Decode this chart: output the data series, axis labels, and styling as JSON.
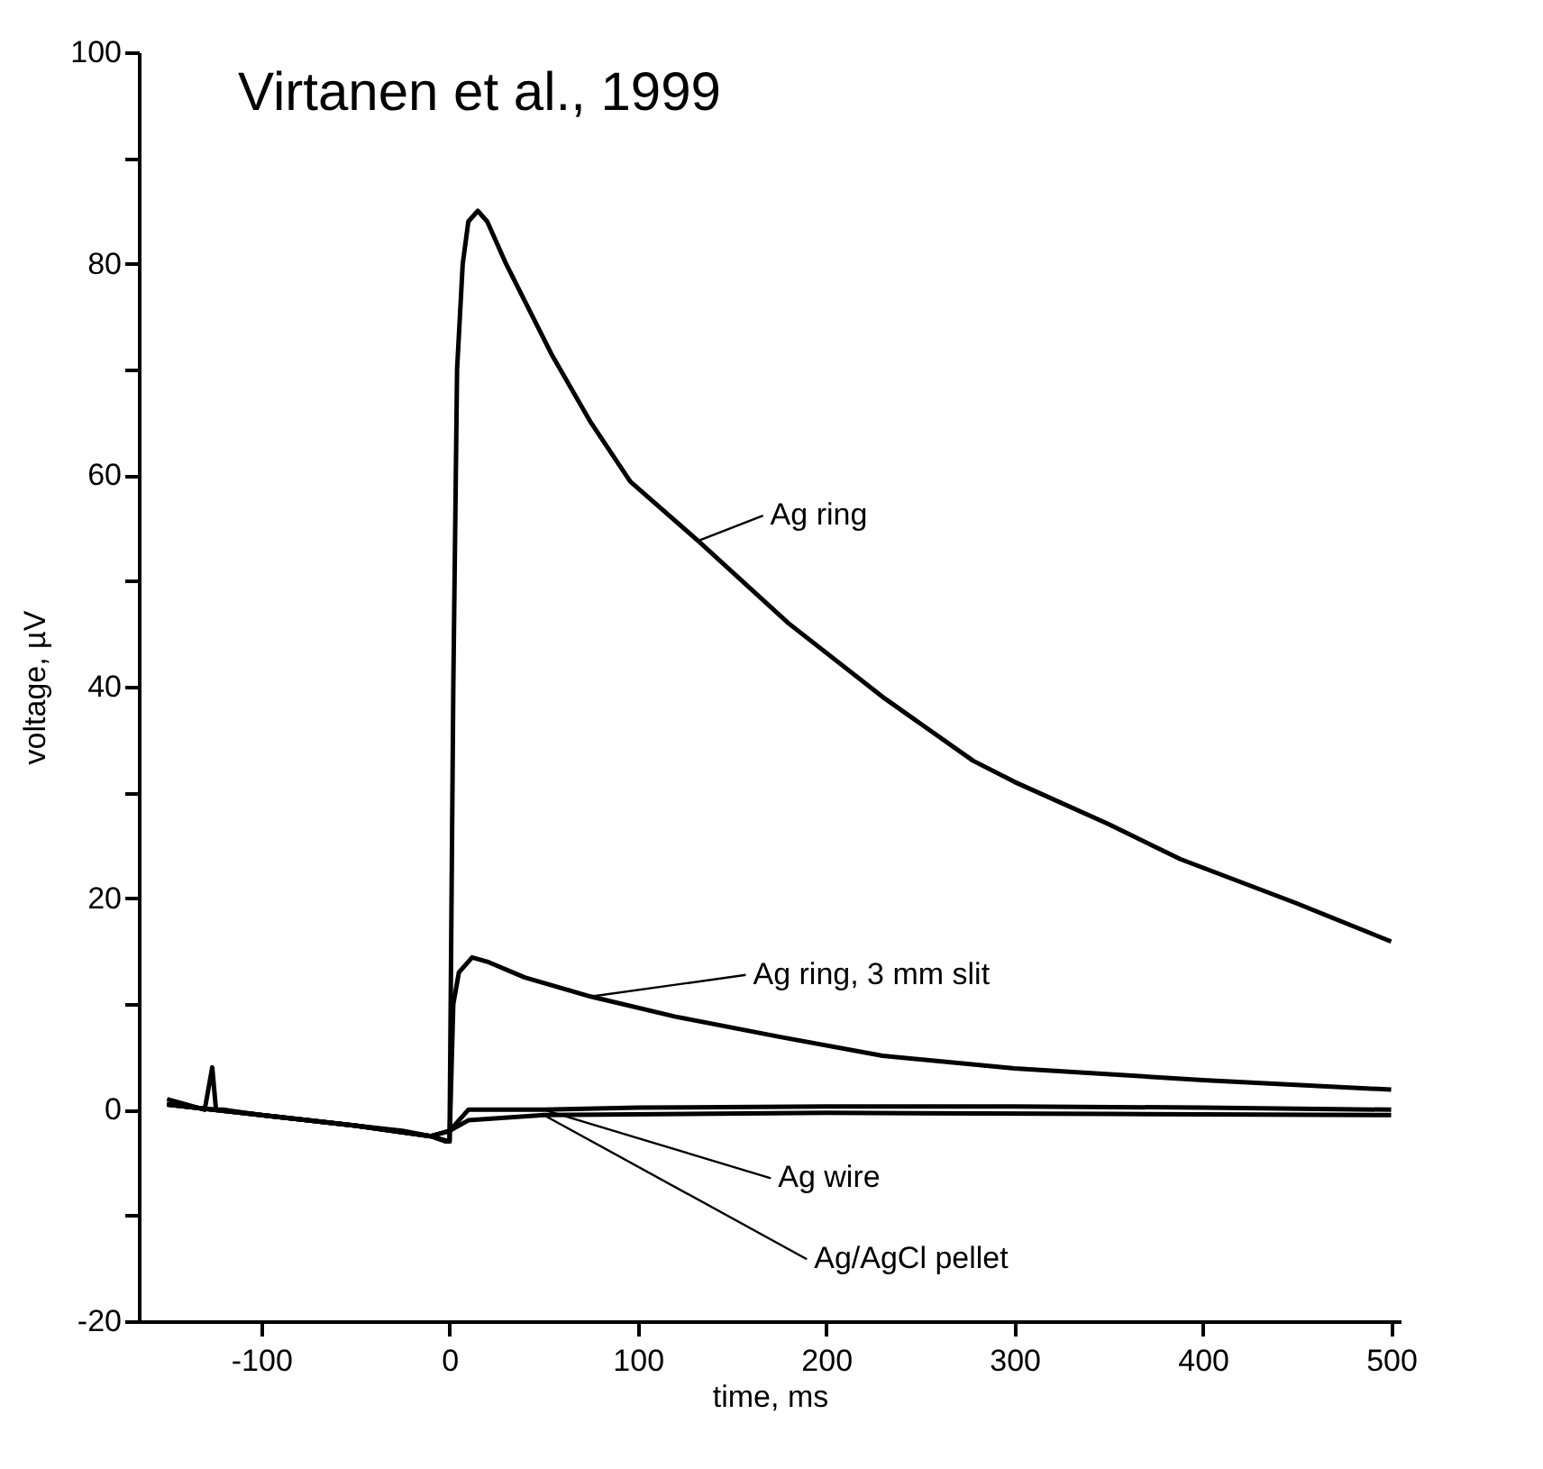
{
  "chart_data": {
    "type": "line",
    "title": "Virtanen  et al., 1999",
    "xlabel": "time, ms",
    "ylabel": "voltage, µV",
    "xlim": [
      -165,
      505
    ],
    "ylim": [
      -20,
      100
    ],
    "xticks": [
      -100,
      0,
      100,
      200,
      300,
      400,
      500
    ],
    "yticks": [
      -20,
      {
        "value": -10,
        "label": null
      },
      0,
      {
        "value": 10,
        "label": null
      },
      20,
      {
        "value": 30,
        "label": null
      },
      40,
      {
        "value": 50,
        "label": null
      },
      60,
      {
        "value": 70,
        "label": null
      },
      80,
      {
        "value": 90,
        "label": null
      },
      100
    ],
    "grid": false,
    "marker": "none",
    "line_style": "solid",
    "series": [
      {
        "name": "Ag ring",
        "color": "#000000",
        "x": [
          -150,
          -140,
          -130,
          -126,
          -124,
          -120,
          -100,
          -75,
          -50,
          -25,
          -10,
          -2,
          0,
          2,
          4,
          7,
          10,
          15,
          20,
          30,
          54,
          75,
          96,
          132,
          180,
          231,
          278,
          300,
          350,
          388,
          450,
          500
        ],
        "values": [
          1,
          0.5,
          0,
          4,
          0,
          0,
          -0.5,
          -1,
          -1.5,
          -2,
          -2.5,
          -3,
          -3,
          40,
          70,
          80,
          84,
          85,
          84,
          80,
          71.5,
          65,
          59.4,
          53.8,
          46,
          38.9,
          33,
          31,
          27,
          23.7,
          19.5,
          15.9
        ]
      },
      {
        "name": "Ag ring, 3 mm slit",
        "color": "#000000",
        "x": [
          -150,
          -100,
          -50,
          -10,
          0,
          2,
          5,
          12,
          20,
          40,
          75,
          120,
          175,
          230,
          300,
          400,
          500
        ],
        "values": [
          0.5,
          -0.5,
          -1.5,
          -2.5,
          -3,
          10,
          13,
          14.4,
          14,
          12.5,
          10.7,
          8.8,
          6.9,
          5.1,
          3.9,
          2.8,
          1.9
        ]
      },
      {
        "name": "Ag wire",
        "color": "#000000",
        "x": [
          -150,
          -100,
          -50,
          -10,
          0,
          10,
          50,
          100,
          200,
          300,
          400,
          500
        ],
        "values": [
          0.5,
          -0.5,
          -1.5,
          -2.5,
          -2,
          0,
          0,
          0.2,
          0.3,
          0.3,
          0.2,
          0
        ]
      },
      {
        "name": "Ag/AgCl pellet",
        "color": "#000000",
        "x": [
          -150,
          -100,
          -50,
          -10,
          0,
          10,
          50,
          200,
          350,
          500
        ],
        "values": [
          0.5,
          -0.5,
          -1.5,
          -2.5,
          -2,
          -1,
          -0.5,
          -0.3,
          -0.4,
          -0.5
        ]
      }
    ]
  }
}
